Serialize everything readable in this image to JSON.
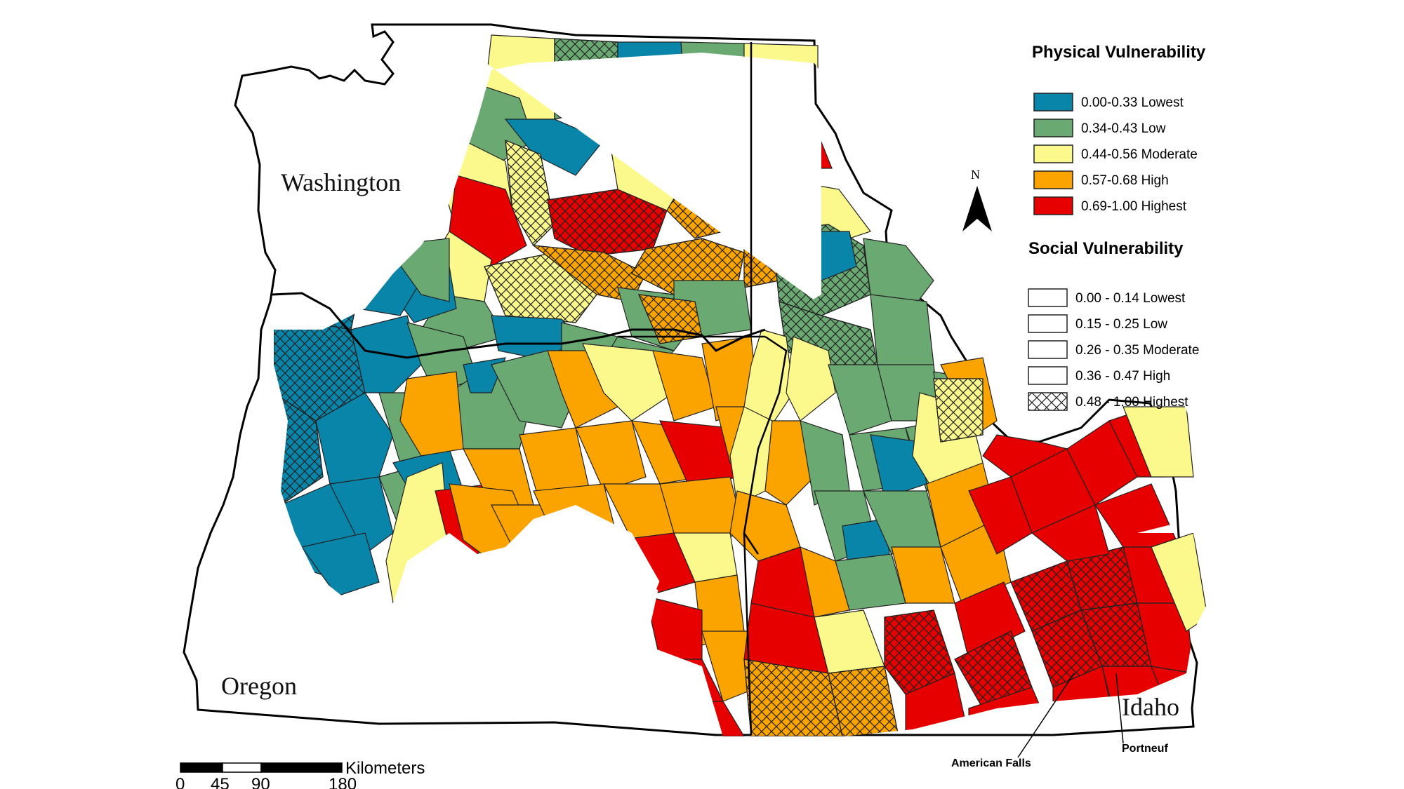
{
  "states": {
    "washington": "Washington",
    "oregon": "Oregon",
    "idaho": "Idaho"
  },
  "north_arrow": {
    "label": "N"
  },
  "physical_legend": {
    "title": "Physical Vulnerability",
    "classes": [
      {
        "label": "0.00-0.33 Lowest",
        "color": "#0a85aa"
      },
      {
        "label": "0.34-0.43 Low",
        "color": "#6aaa72"
      },
      {
        "label": "0.44-0.56 Moderate",
        "color": "#fbf98c"
      },
      {
        "label": "0.57-0.68 High",
        "color": "#fba400"
      },
      {
        "label": "0.69-1.00 Highest",
        "color": "#e60000"
      }
    ]
  },
  "social_legend": {
    "title": "Social Vulnerability",
    "classes": [
      {
        "label": "0.00 - 0.14 Lowest",
        "hatched": false
      },
      {
        "label": "0.15 - 0.25 Low",
        "hatched": false
      },
      {
        "label": "0.26 - 0.35 Moderate",
        "hatched": false
      },
      {
        "label": "0.36 - 0.47 High",
        "hatched": false
      },
      {
        "label": "0.48 - 1.00 Highest",
        "hatched": true
      }
    ]
  },
  "callouts": {
    "american_falls": "American Falls",
    "portneuf": "Portneuf"
  },
  "scale_bar": {
    "unit": "Kilometers",
    "ticks": [
      "0",
      "45",
      "90",
      "180"
    ]
  }
}
